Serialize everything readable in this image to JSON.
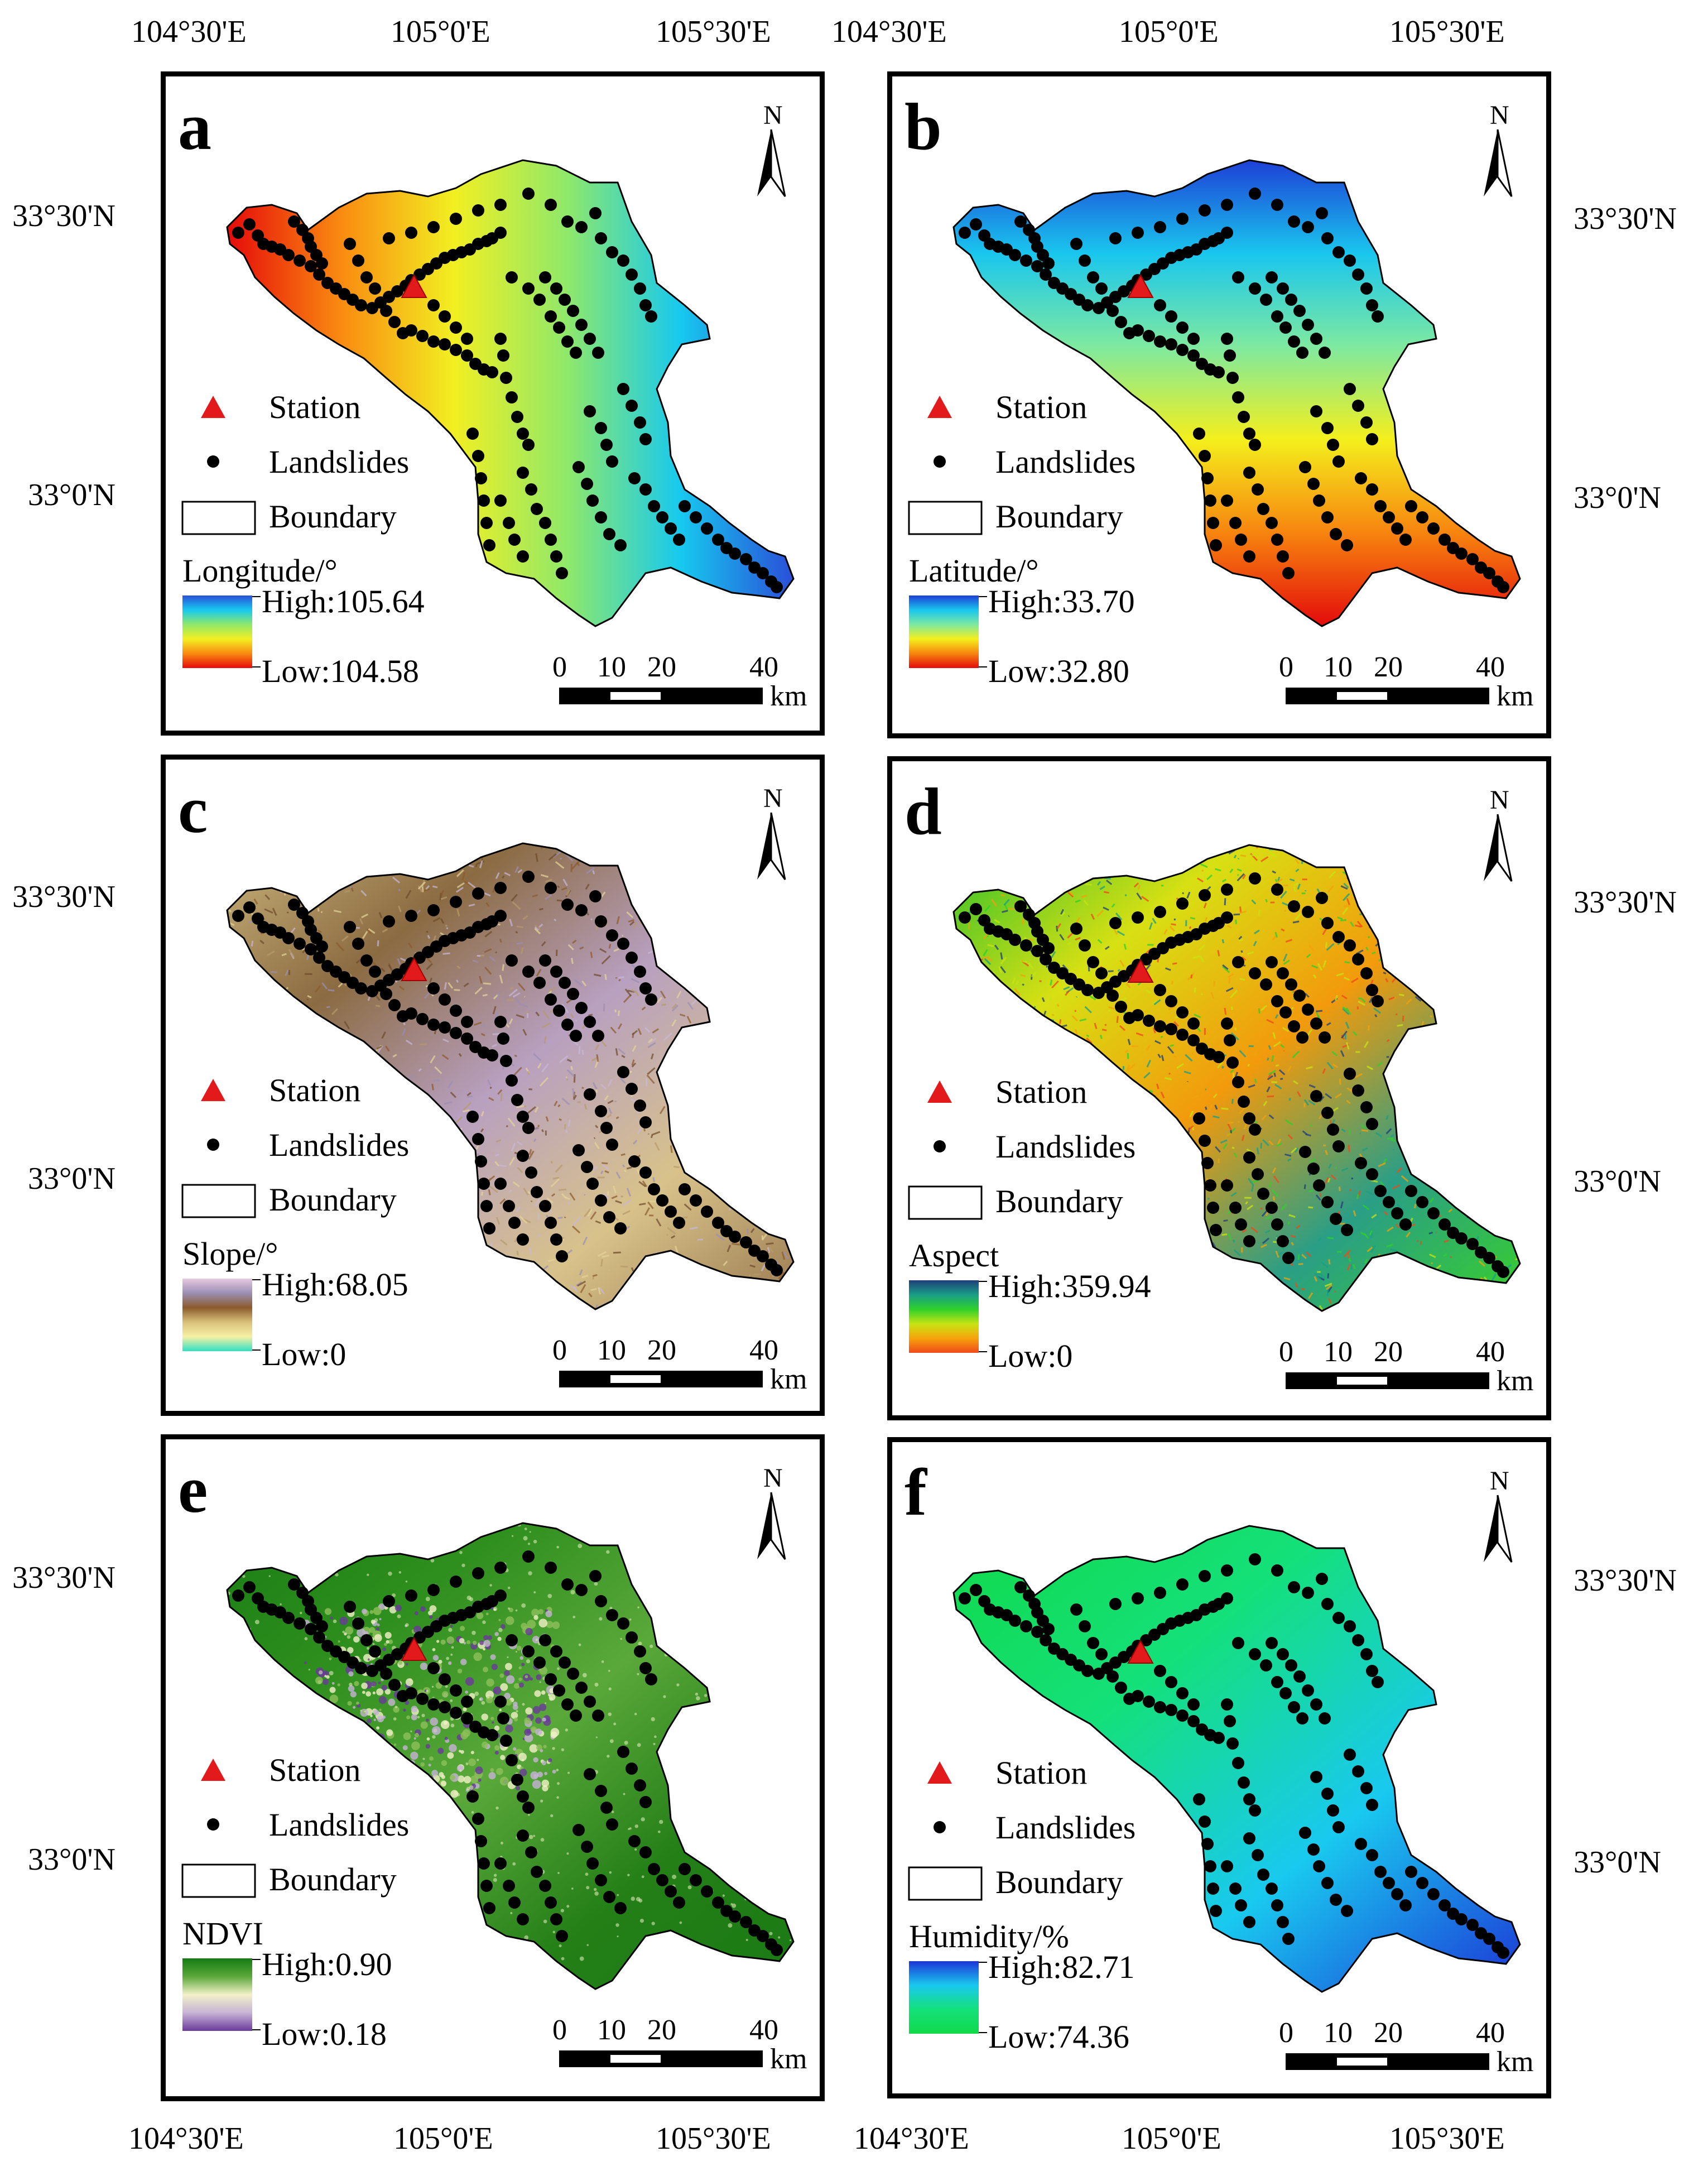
{
  "top_lon_labels": [
    "104°30'E",
    "105°0'E",
    "105°30'E",
    "104°30'E",
    "105°0'E",
    "105°30'E"
  ],
  "bottom_lon_labels": [
    "104°30'E",
    "105°0'E",
    "105°30'E",
    "104°30'E",
    "105°0'E",
    "105°30'E"
  ],
  "left_lat_labels": [
    "33°30'N",
    "33°0'N",
    "33°30'N",
    "33°0'N",
    "33°30'N",
    "33°0'N"
  ],
  "right_lat_labels": [
    "33°30'N",
    "33°0'N",
    "33°30'N",
    "33°0'N",
    "33°30'N",
    "33°0'N"
  ],
  "legend": {
    "station": "Station",
    "landslides": "Landslides",
    "boundary": "Boundary"
  },
  "north_label": "N",
  "scale": {
    "ticks": [
      "0",
      "10",
      "20",
      "40"
    ],
    "unit": "km"
  },
  "colors": {
    "station": "#e31a1c",
    "landslide": "#000000",
    "boundary": "#000000"
  },
  "panels": [
    {
      "letter": "a",
      "var_title": "Longitude/°",
      "high": "High:105.64",
      "low": "Low:104.58",
      "gradient": [
        "#2a4fd8",
        "#17c9ef",
        "#8fe86a",
        "#f2ef22",
        "#f98a10",
        "#e60a0a"
      ],
      "fill": "lon"
    },
    {
      "letter": "b",
      "var_title": "Latitude/°",
      "high": "High:33.70",
      "low": "Low:32.80",
      "gradient": [
        "#1e3fd6",
        "#19c6ee",
        "#7ee9a0",
        "#f4ef1c",
        "#f7840f",
        "#e30b0b"
      ],
      "fill": "lat"
    },
    {
      "letter": "c",
      "var_title": "Slope/°",
      "high": "High:68.05",
      "low": "Low:0",
      "gradient": [
        "#e6c8e0",
        "#9b8fb4",
        "#8b5a2b",
        "#d9c07a",
        "#f7f1a5",
        "#2fe0c4"
      ],
      "fill": "slope"
    },
    {
      "letter": "d",
      "var_title": "Aspect",
      "high": "High:359.94",
      "low": "Low:0",
      "gradient": [
        "#1f3f7a",
        "#1a9e86",
        "#2fd02c",
        "#c7e413",
        "#f7a20c",
        "#ef4a1a"
      ],
      "fill": "aspect"
    },
    {
      "letter": "e",
      "var_title": "NDVI",
      "high": "High:0.90",
      "low": "Low:0.18",
      "gradient": [
        "#157a14",
        "#5aa83a",
        "#f3f1c8",
        "#c7b3d6",
        "#6a3a9a"
      ],
      "fill": "ndvi"
    },
    {
      "letter": "f",
      "var_title": "Humidity/%",
      "high": "High:82.71",
      "low": "Low:74.36",
      "gradient": [
        "#1d35d6",
        "#19c9ef",
        "#14e07a",
        "#11d94a"
      ],
      "fill": "hum"
    }
  ]
}
